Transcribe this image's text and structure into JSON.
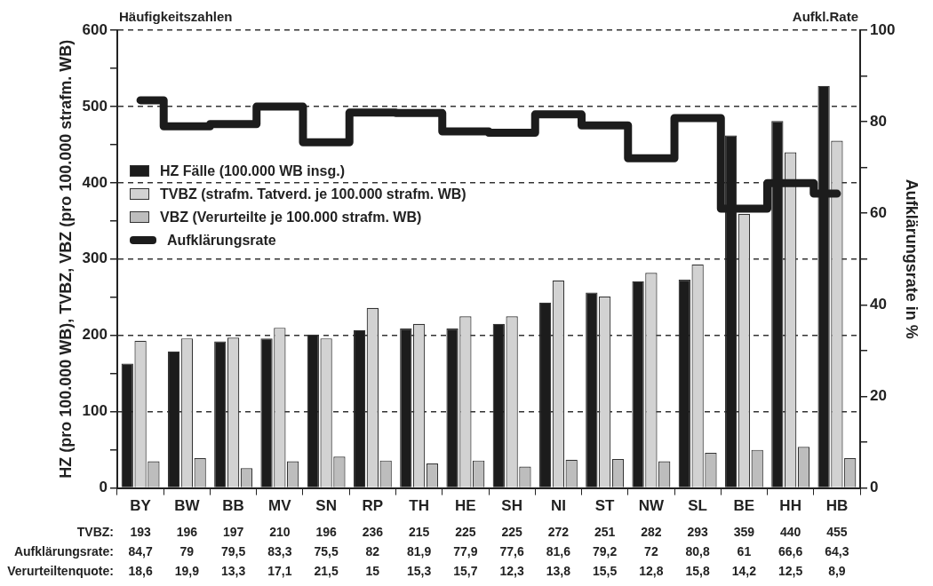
{
  "chart_data": {
    "type": "bar",
    "ylabel": "HZ (pro 100.000 WB), TVBZ, VBZ (pro 100.000 strafm. WB)",
    "y2label": "Aufklärungsrate in %",
    "categories": [
      "BY",
      "BW",
      "BB",
      "MV",
      "SN",
      "RP",
      "TH",
      "HE",
      "SH",
      "NI",
      "ST",
      "NW",
      "SL",
      "BE",
      "HH",
      "HB"
    ],
    "series": [
      {
        "name": "HZ Fälle (100.000 WB insg.)",
        "color": "#1c1c1c",
        "values": [
          163,
          179,
          192,
          196,
          201,
          207,
          209,
          209,
          215,
          243,
          256,
          271,
          273,
          462,
          481,
          527
        ]
      },
      {
        "name": "TVBZ (strafm. Tatverd. je 100.000 strafm. WB)",
        "color": "#d2d2d2",
        "values": [
          193,
          196,
          197,
          210,
          196,
          236,
          215,
          225,
          225,
          272,
          251,
          282,
          293,
          359,
          440,
          455
        ],
        "value_labels": [
          "193",
          "196",
          "197",
          "210",
          "196",
          "236",
          "215",
          "225",
          "225",
          "272",
          "251",
          "282",
          "293",
          "359",
          "440",
          "455"
        ]
      },
      {
        "name": "VBZ (Verurteilte je 100.000 strafm. WB)",
        "color": "#bdbdbd",
        "values": [
          35,
          39,
          26,
          35,
          41,
          36,
          32,
          36,
          28,
          37,
          38,
          35,
          46,
          50,
          54,
          39
        ]
      },
      {
        "name": "Aufklärungsrate",
        "type": "step",
        "axis": "y2",
        "color": "#1c1c1c",
        "values": [
          84.7,
          79,
          79.5,
          83.3,
          75.5,
          82,
          81.9,
          77.9,
          77.6,
          81.6,
          79.2,
          72,
          80.8,
          61,
          66.6,
          64.3
        ],
        "value_labels": [
          "84,7",
          "79",
          "79,5",
          "83,3",
          "75,5",
          "82",
          "81,9",
          "77,9",
          "77,6",
          "81,6",
          "79,2",
          "72",
          "80,8",
          "61",
          "66,6",
          "64,3"
        ]
      }
    ],
    "ylim": [
      0,
      600
    ],
    "yticks": [
      0,
      {
        "value": 50,
        "label": null
      },
      100,
      {
        "value": 150,
        "label": null
      },
      200,
      {
        "value": 250,
        "label": null
      },
      300,
      {
        "value": 350,
        "label": null
      },
      400,
      {
        "value": 450,
        "label": null
      },
      500,
      {
        "value": 550,
        "label": null
      },
      600
    ],
    "y2lim": [
      0,
      100
    ],
    "y2ticks": [
      0,
      {
        "value": 10,
        "label": null
      },
      20,
      {
        "value": 30,
        "label": null
      },
      40,
      {
        "value": 50,
        "label": null
      },
      60,
      {
        "value": 70,
        "label": null
      },
      80,
      {
        "value": 90,
        "label": null
      },
      100
    ],
    "grid": "y",
    "legend": "left",
    "annotations": [
      "Häufigkeitszahlen",
      "Aufkl.Rate",
      "TVBZ:",
      "Aufklärungsrate:",
      "Verurteiltenquote:",
      "18,6",
      "19,9",
      "13,3",
      "17,1",
      "21,5",
      "15",
      "15,3",
      "15,7",
      "12,3",
      "13,8",
      "15,5",
      "12,8",
      "15,8",
      "14,2",
      "12,5",
      "8,9"
    ]
  }
}
